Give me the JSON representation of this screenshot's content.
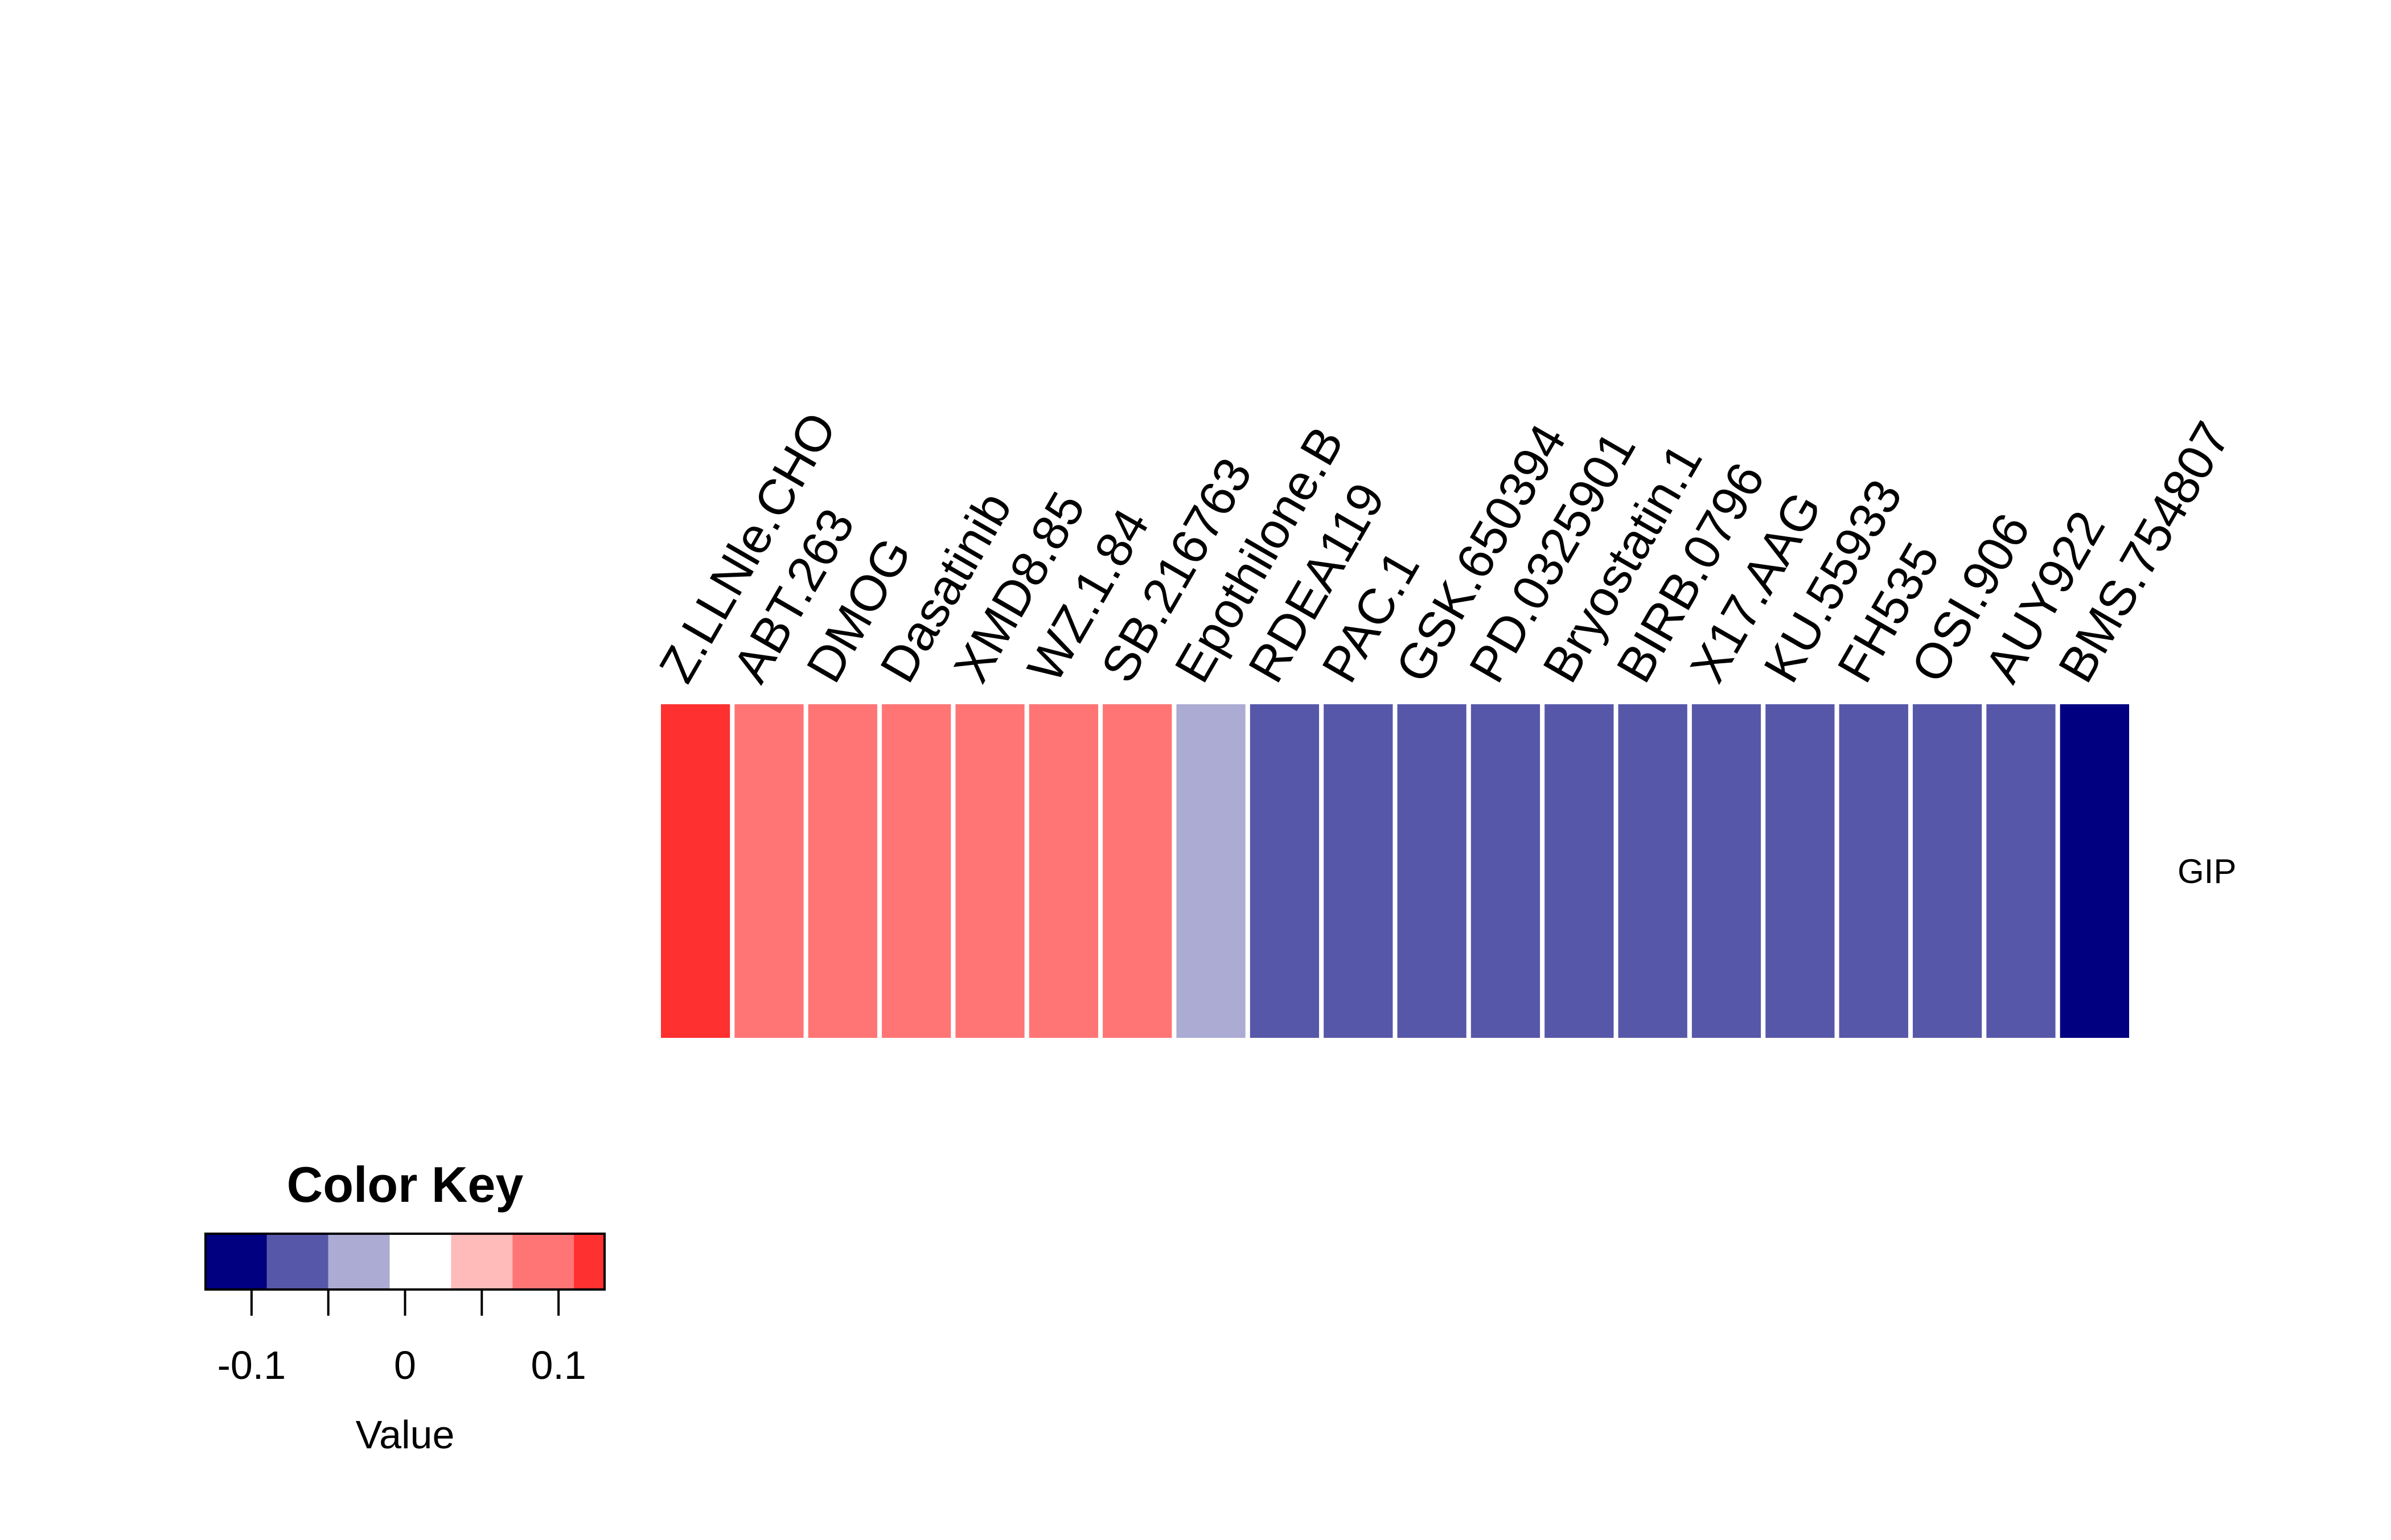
{
  "chart_data": {
    "type": "heatmap",
    "row_labels": [
      "GIP"
    ],
    "column_labels": [
      "Z.LLNle.CHO",
      "ABT.263",
      "DMOG",
      "Dasatinib",
      "XMD8.85",
      "WZ.1.84",
      "SB.216763",
      "Epothilone.B",
      "RDEA119",
      "PAC.1",
      "GSK.650394",
      "PD.0325901",
      "Bryostatin.1",
      "BIRB.0796",
      "X17.AAG",
      "KU.55933",
      "FH535",
      "OSI.906",
      "AUY922",
      "BMS.754807"
    ],
    "values": [
      [
        0.12,
        0.08,
        0.08,
        0.08,
        0.08,
        0.08,
        0.08,
        -0.04,
        -0.08,
        -0.08,
        -0.08,
        -0.08,
        -0.08,
        -0.08,
        -0.08,
        -0.08,
        -0.08,
        -0.08,
        -0.08,
        -0.12
      ]
    ],
    "color_key": {
      "title": "Color Key",
      "xlabel": "Value",
      "breaks": [
        -0.13,
        -0.09,
        -0.05,
        -0.01,
        0.03,
        0.07,
        0.11,
        0.13
      ],
      "colors": [
        "#000080",
        "#5757A9",
        "#ABABD4",
        "#FFFFFF",
        "#FFBABA",
        "#FF7575",
        "#FF3030"
      ],
      "tick_values": [
        -0.1,
        -0.05,
        0,
        0.05,
        0.1
      ],
      "tick_labels": [
        "-0.1",
        "",
        "0",
        "",
        "0.1"
      ]
    }
  }
}
